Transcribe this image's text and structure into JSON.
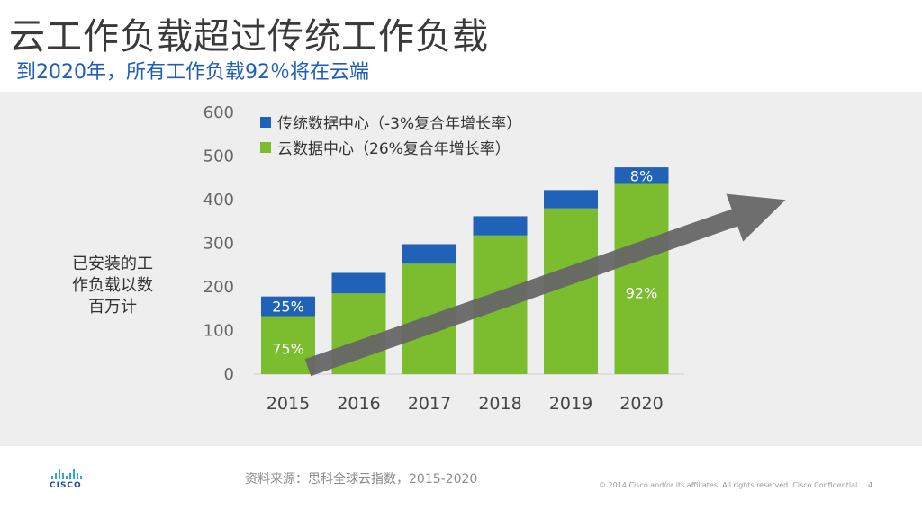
{
  "slide": {
    "title": "云工作负载超过传统工作负载",
    "subtitle": "到2020年，所有工作负载92％将在云端",
    "y_axis_label_lines": [
      "已安装的工",
      "作负载以数",
      "百万计"
    ],
    "source": "资料来源：思科全球云指数，2015-2020",
    "copyright": "© 2014  Cisco and/or its affiliates. All rights reserved.   Cisco Confidential",
    "page_number": "4",
    "logo_text": "CISCO"
  },
  "colors": {
    "traditional": "#1f62b7",
    "cloud": "#7bbd2e",
    "arrow": "#666666",
    "panel": "#eeeeee"
  },
  "chart_data": {
    "type": "bar",
    "stacked": true,
    "title": "",
    "xlabel": "",
    "ylabel": "已安装的工作负载以数百万计",
    "categories": [
      "2015",
      "2016",
      "2017",
      "2018",
      "2019",
      "2020"
    ],
    "series": [
      {
        "name": "云数据中心（26%复合年增长率）",
        "values": [
          133,
          185,
          253,
          318,
          380,
          436
        ],
        "color": "#7bbd2e"
      },
      {
        "name": "传统数据中心（-3%复合年增长率）",
        "values": [
          45,
          47,
          45,
          44,
          42,
          38
        ],
        "color": "#1f62b7"
      }
    ],
    "legend": [
      {
        "label": "传统数据中心（-3%复合年增长率）",
        "color": "#1f62b7"
      },
      {
        "label": "云数据中心（26%复合年增长率）",
        "color": "#7bbd2e"
      }
    ],
    "ylim": [
      0,
      600
    ],
    "yticks": [
      0,
      100,
      200,
      300,
      400,
      500,
      600
    ],
    "annotations": [
      {
        "category": "2015",
        "series": "traditional",
        "text": "25%"
      },
      {
        "category": "2015",
        "series": "cloud",
        "text": "75%"
      },
      {
        "category": "2020",
        "series": "traditional",
        "text": "8%"
      },
      {
        "category": "2020",
        "series": "cloud",
        "text": "92%"
      }
    ],
    "trend_arrow": {
      "from": {
        "category": "2015",
        "value": 15
      },
      "to": {
        "category": "2020",
        "value": 410
      }
    },
    "grid": false,
    "legend_position": "top-left"
  }
}
